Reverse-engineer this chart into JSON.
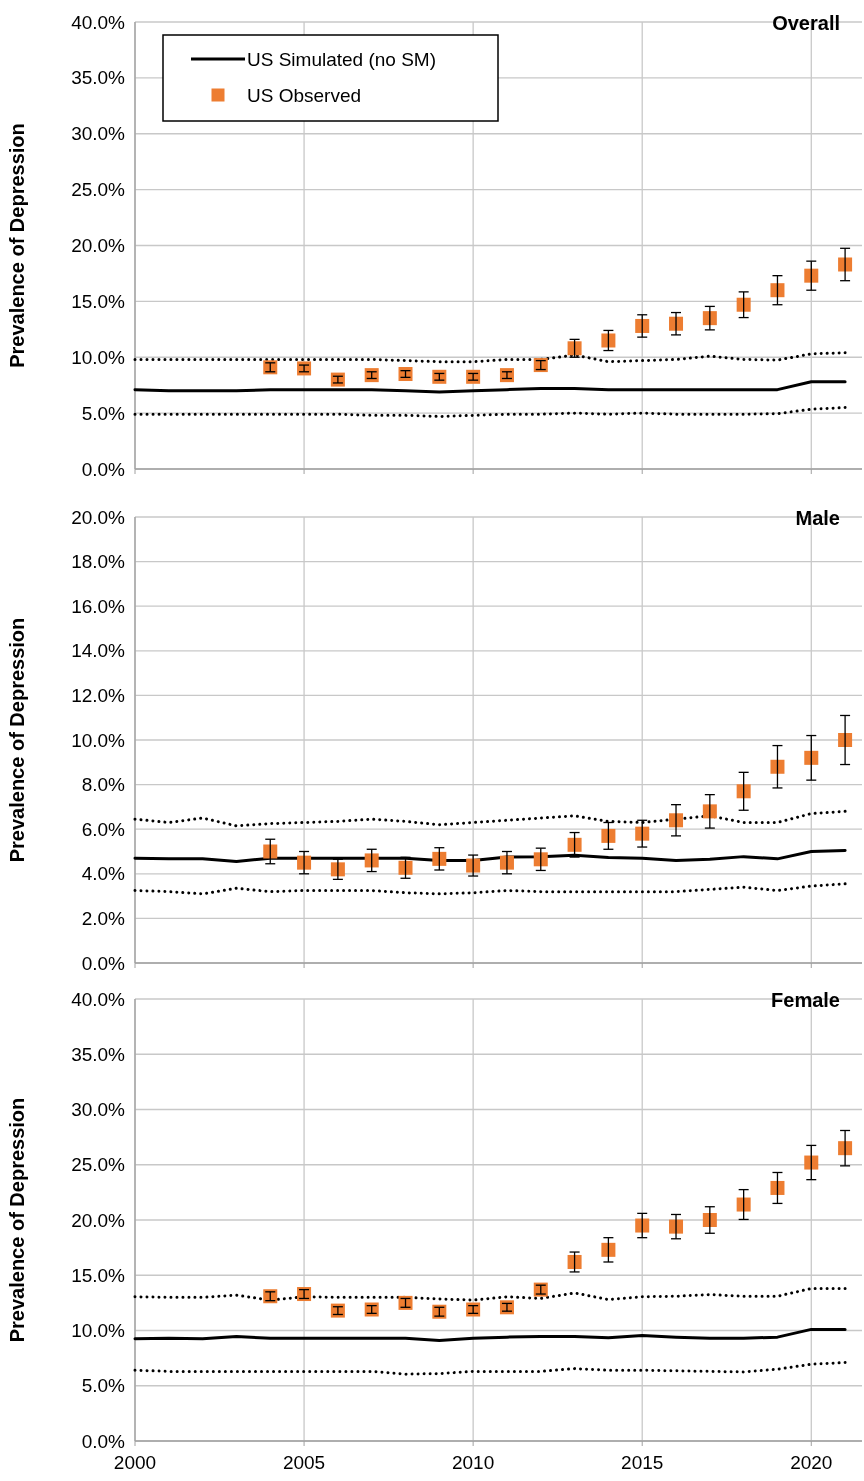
{
  "chart_data": [
    {
      "type": "line",
      "title": "Overall",
      "ylabel": "Prevalence of Depression",
      "x": [
        2000,
        2001,
        2002,
        2003,
        2004,
        2005,
        2006,
        2007,
        2008,
        2009,
        2010,
        2011,
        2012,
        2013,
        2014,
        2015,
        2016,
        2017,
        2018,
        2019,
        2020,
        2021
      ],
      "xlim": [
        2000,
        2021.5
      ],
      "xticks": [
        2000,
        2005,
        2010,
        2015,
        2020
      ],
      "ylim": [
        0,
        40
      ],
      "yticks": [
        {
          "value": 0,
          "label": "0.0%"
        },
        {
          "value": 5,
          "label": "5.0%"
        },
        {
          "value": 10,
          "label": "10.0%"
        },
        {
          "value": 15,
          "label": "15.0%"
        },
        {
          "value": 20,
          "label": "20.0%"
        },
        {
          "value": 25,
          "label": "25.0%"
        },
        {
          "value": 30,
          "label": "30.0%"
        },
        {
          "value": 35,
          "label": "35.0%"
        },
        {
          "value": 40,
          "label": "40.0%"
        }
      ],
      "grid": true,
      "legend": "top left",
      "tick_labels": "y",
      "series": [
        {
          "name": "US Simulated (no SM)",
          "type": "line",
          "color": "#000000",
          "line_style": "solid",
          "marker": "none",
          "values": [
            7.1,
            7.0,
            7.0,
            7.0,
            7.1,
            7.1,
            7.1,
            7.1,
            7.0,
            6.9,
            7.0,
            7.1,
            7.2,
            7.2,
            7.1,
            7.1,
            7.1,
            7.1,
            7.1,
            7.1,
            7.8,
            7.8
          ]
        },
        {
          "type": "line",
          "color": "#000000",
          "line_style": "dotted",
          "marker": "none",
          "values": [
            9.8,
            9.8,
            9.8,
            9.8,
            9.8,
            9.8,
            9.8,
            9.8,
            9.7,
            9.6,
            9.6,
            9.8,
            9.8,
            10.2,
            9.6,
            9.7,
            9.8,
            10.1,
            9.8,
            9.75,
            10.3,
            10.4
          ]
        },
        {
          "type": "line",
          "color": "#000000",
          "line_style": "dotted",
          "marker": "none",
          "values": [
            4.9,
            4.9,
            4.9,
            4.9,
            4.9,
            4.9,
            4.9,
            4.8,
            4.8,
            4.7,
            4.8,
            4.9,
            4.9,
            5.0,
            4.9,
            5.0,
            4.9,
            4.9,
            4.9,
            4.95,
            5.35,
            5.5
          ]
        },
        {
          "name": "US Observed",
          "type": "scatter",
          "color": "#ed7d31",
          "marker": "square",
          "x": [
            2004,
            2005,
            2006,
            2007,
            2008,
            2009,
            2010,
            2011,
            2012,
            2013,
            2014,
            2015,
            2016,
            2017,
            2018,
            2019,
            2020,
            2021
          ],
          "values": [
            9.1,
            9.0,
            8.0,
            8.4,
            8.5,
            8.25,
            8.25,
            8.4,
            9.3,
            10.8,
            11.5,
            12.8,
            13.0,
            13.5,
            14.7,
            16.0,
            17.3,
            18.3
          ],
          "errors": [
            0.4,
            0.3,
            0.3,
            0.3,
            0.3,
            0.3,
            0.3,
            0.3,
            0.4,
            0.8,
            0.9,
            1.0,
            1.0,
            1.05,
            1.15,
            1.3,
            1.3,
            1.45
          ]
        }
      ]
    },
    {
      "type": "line",
      "title": "Male",
      "ylabel": "Prevalence of Depression",
      "x": [
        2000,
        2001,
        2002,
        2003,
        2004,
        2005,
        2006,
        2007,
        2008,
        2009,
        2010,
        2011,
        2012,
        2013,
        2014,
        2015,
        2016,
        2017,
        2018,
        2019,
        2020,
        2021
      ],
      "xlim": [
        2000,
        2021.5
      ],
      "xticks": [
        2000,
        2005,
        2010,
        2015,
        2020
      ],
      "ylim": [
        0,
        20
      ],
      "yticks": [
        {
          "value": 0,
          "label": "0.0%"
        },
        {
          "value": 2,
          "label": "2.0%"
        },
        {
          "value": 4,
          "label": "4.0%"
        },
        {
          "value": 6,
          "label": "6.0%"
        },
        {
          "value": 8,
          "label": "8.0%"
        },
        {
          "value": 10,
          "label": "10.0%"
        },
        {
          "value": 12,
          "label": "12.0%"
        },
        {
          "value": 14,
          "label": "14.0%"
        },
        {
          "value": 16,
          "label": "16.0%"
        },
        {
          "value": 18,
          "label": "18.0%"
        },
        {
          "value": 20,
          "label": "20.0%"
        }
      ],
      "grid": true,
      "tick_labels": "y",
      "series": [
        {
          "type": "line",
          "color": "#000000",
          "line_style": "solid",
          "marker": "none",
          "values": [
            4.7,
            4.68,
            4.67,
            4.55,
            4.7,
            4.7,
            4.7,
            4.7,
            4.7,
            4.6,
            4.6,
            4.75,
            4.77,
            4.83,
            4.73,
            4.7,
            4.6,
            4.65,
            4.77,
            4.67,
            5.0,
            5.05
          ]
        },
        {
          "type": "line",
          "color": "#000000",
          "line_style": "dotted",
          "marker": "none",
          "values": [
            6.45,
            6.3,
            6.5,
            6.15,
            6.25,
            6.3,
            6.35,
            6.45,
            6.35,
            6.2,
            6.3,
            6.4,
            6.5,
            6.6,
            6.35,
            6.3,
            6.45,
            6.6,
            6.3,
            6.3,
            6.7,
            6.8
          ]
        },
        {
          "type": "line",
          "color": "#000000",
          "line_style": "dotted",
          "marker": "none",
          "values": [
            3.25,
            3.2,
            3.1,
            3.35,
            3.2,
            3.25,
            3.25,
            3.25,
            3.15,
            3.1,
            3.15,
            3.25,
            3.2,
            3.2,
            3.2,
            3.2,
            3.2,
            3.3,
            3.4,
            3.25,
            3.45,
            3.55
          ]
        },
        {
          "type": "scatter",
          "color": "#ed7d31",
          "marker": "square",
          "x": [
            2004,
            2005,
            2006,
            2007,
            2008,
            2009,
            2010,
            2011,
            2012,
            2013,
            2014,
            2015,
            2016,
            2017,
            2018,
            2019,
            2020,
            2021
          ],
          "values": [
            5.0,
            4.5,
            4.2,
            4.6,
            4.27,
            4.67,
            4.37,
            4.5,
            4.65,
            5.3,
            5.7,
            5.8,
            6.4,
            6.8,
            7.7,
            8.8,
            9.2,
            10.0
          ],
          "errors": [
            0.55,
            0.5,
            0.45,
            0.5,
            0.47,
            0.5,
            0.47,
            0.5,
            0.5,
            0.55,
            0.6,
            0.6,
            0.7,
            0.75,
            0.85,
            0.95,
            1.0,
            1.1
          ]
        }
      ]
    },
    {
      "type": "line",
      "title": "Female",
      "ylabel": "Prevalence of Depression",
      "x": [
        2000,
        2001,
        2002,
        2003,
        2004,
        2005,
        2006,
        2007,
        2008,
        2009,
        2010,
        2011,
        2012,
        2013,
        2014,
        2015,
        2016,
        2017,
        2018,
        2019,
        2020,
        2021
      ],
      "xlim": [
        2000,
        2021.5
      ],
      "xticks": [
        2000,
        2005,
        2010,
        2015,
        2020
      ],
      "ylim": [
        0,
        40
      ],
      "yticks": [
        {
          "value": 0,
          "label": "0.0%"
        },
        {
          "value": 5,
          "label": "5.0%"
        },
        {
          "value": 10,
          "label": "10.0%"
        },
        {
          "value": 15,
          "label": "15.0%"
        },
        {
          "value": 20,
          "label": "20.0%"
        },
        {
          "value": 25,
          "label": "25.0%"
        },
        {
          "value": 30,
          "label": "30.0%"
        },
        {
          "value": 35,
          "label": "35.0%"
        },
        {
          "value": 40,
          "label": "40.0%"
        }
      ],
      "grid": true,
      "series": [
        {
          "type": "line",
          "color": "#000000",
          "line_style": "solid",
          "marker": "none",
          "values": [
            9.25,
            9.3,
            9.25,
            9.45,
            9.3,
            9.3,
            9.3,
            9.3,
            9.3,
            9.1,
            9.3,
            9.4,
            9.45,
            9.45,
            9.35,
            9.55,
            9.4,
            9.3,
            9.3,
            9.4,
            10.1,
            10.1
          ]
        },
        {
          "type": "line",
          "color": "#000000",
          "line_style": "dotted",
          "marker": "none",
          "values": [
            13.05,
            13.0,
            13.0,
            13.2,
            12.75,
            13.05,
            13.0,
            13.0,
            13.0,
            12.85,
            12.75,
            13.05,
            12.9,
            13.4,
            12.8,
            13.05,
            13.1,
            13.25,
            13.1,
            13.1,
            13.8,
            13.8
          ]
        },
        {
          "type": "line",
          "color": "#000000",
          "line_style": "dotted",
          "marker": "none",
          "values": [
            6.4,
            6.3,
            6.3,
            6.3,
            6.3,
            6.3,
            6.3,
            6.3,
            6.05,
            6.1,
            6.3,
            6.3,
            6.3,
            6.55,
            6.4,
            6.4,
            6.35,
            6.3,
            6.25,
            6.5,
            6.95,
            7.1
          ]
        },
        {
          "type": "scatter",
          "color": "#ed7d31",
          "marker": "square",
          "x": [
            2004,
            2005,
            2006,
            2007,
            2008,
            2009,
            2010,
            2011,
            2012,
            2013,
            2014,
            2015,
            2016,
            2017,
            2018,
            2019,
            2020,
            2021
          ],
          "values": [
            13.1,
            13.3,
            11.8,
            11.9,
            12.5,
            11.7,
            11.9,
            12.1,
            13.7,
            16.2,
            17.3,
            19.5,
            19.4,
            20.0,
            21.4,
            22.9,
            25.2,
            26.5
          ],
          "errors": [
            0.4,
            0.4,
            0.35,
            0.35,
            0.4,
            0.4,
            0.35,
            0.35,
            0.4,
            0.9,
            1.1,
            1.1,
            1.1,
            1.2,
            1.35,
            1.4,
            1.55,
            1.6
          ]
        }
      ]
    }
  ]
}
